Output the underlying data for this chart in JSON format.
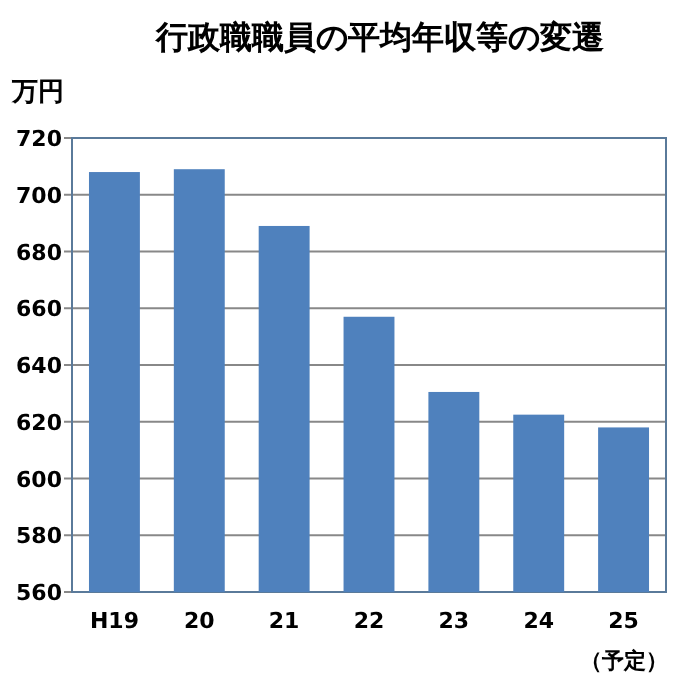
{
  "chart_data": {
    "type": "bar",
    "title": "行政職職員の平均年収等の変遷",
    "ylabel": "万円",
    "categories": [
      "H19",
      "20",
      "21",
      "22",
      "23",
      "24",
      "25\n（予定）"
    ],
    "values": [
      708,
      709,
      689,
      657,
      630.5,
      622.5,
      618
    ],
    "color": "#4f81bd",
    "ylim": [
      560,
      720
    ],
    "yticks": [
      560,
      580,
      600,
      620,
      640,
      660,
      680,
      700,
      720
    ],
    "grid": "y"
  }
}
